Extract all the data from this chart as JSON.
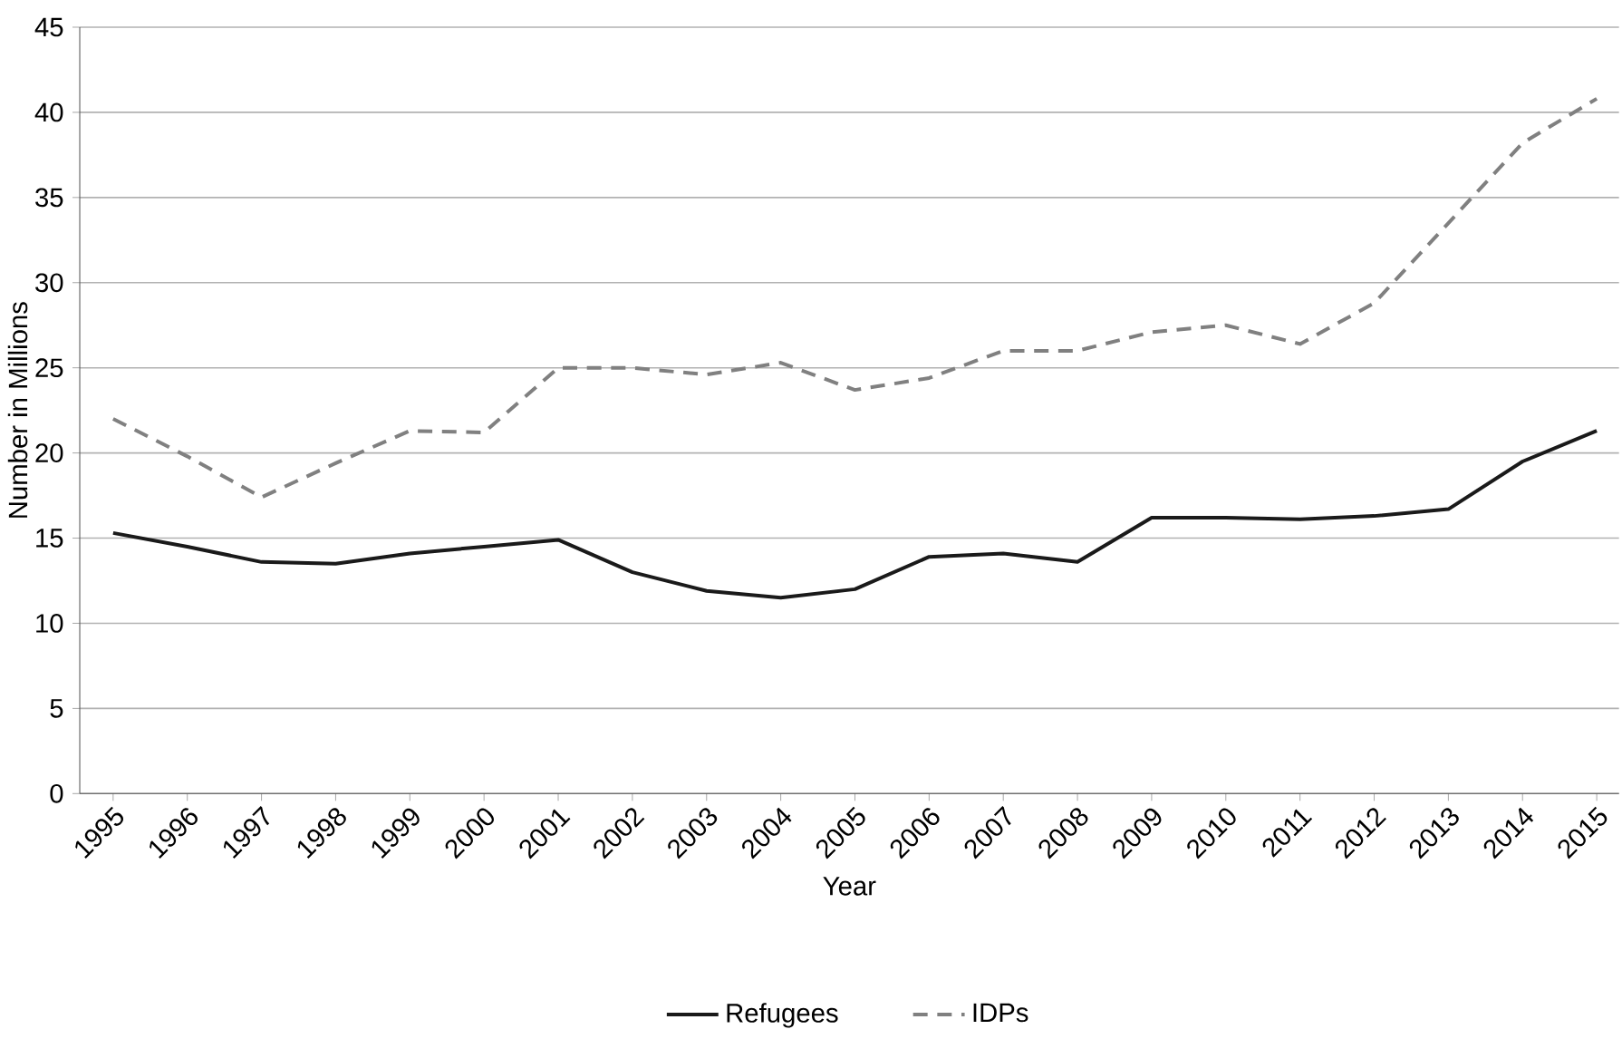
{
  "chart_data": {
    "type": "line",
    "xlabel": "Year",
    "ylabel": "Number in Millions",
    "categories": [
      "1995",
      "1996",
      "1997",
      "1998",
      "1999",
      "2000",
      "2001",
      "2002",
      "2003",
      "2004",
      "2005",
      "2006",
      "2007",
      "2008",
      "2009",
      "2010",
      "2011",
      "2012",
      "2013",
      "2014",
      "2015"
    ],
    "series": [
      {
        "name": "Refugees",
        "color": "#1a1a1a",
        "line_style": "solid",
        "values": [
          15.3,
          14.5,
          13.6,
          13.5,
          14.1,
          14.5,
          14.9,
          13.0,
          11.9,
          11.5,
          12.0,
          13.9,
          14.1,
          13.6,
          16.2,
          16.2,
          16.1,
          16.3,
          16.7,
          19.5,
          21.3
        ]
      },
      {
        "name": "IDPs",
        "color": "#808080",
        "line_style": "dashed",
        "values": [
          22.0,
          19.8,
          17.4,
          19.4,
          21.3,
          21.2,
          25.0,
          25.0,
          24.6,
          25.3,
          23.7,
          24.4,
          26.0,
          26.0,
          27.1,
          27.5,
          26.4,
          28.8,
          33.5,
          38.2,
          40.8
        ]
      }
    ],
    "ylim": [
      0,
      45
    ],
    "yticks": [
      0,
      5,
      10,
      15,
      20,
      25,
      30,
      35,
      40,
      45
    ],
    "grid": "y",
    "legend": "bottom",
    "marker": "none"
  }
}
